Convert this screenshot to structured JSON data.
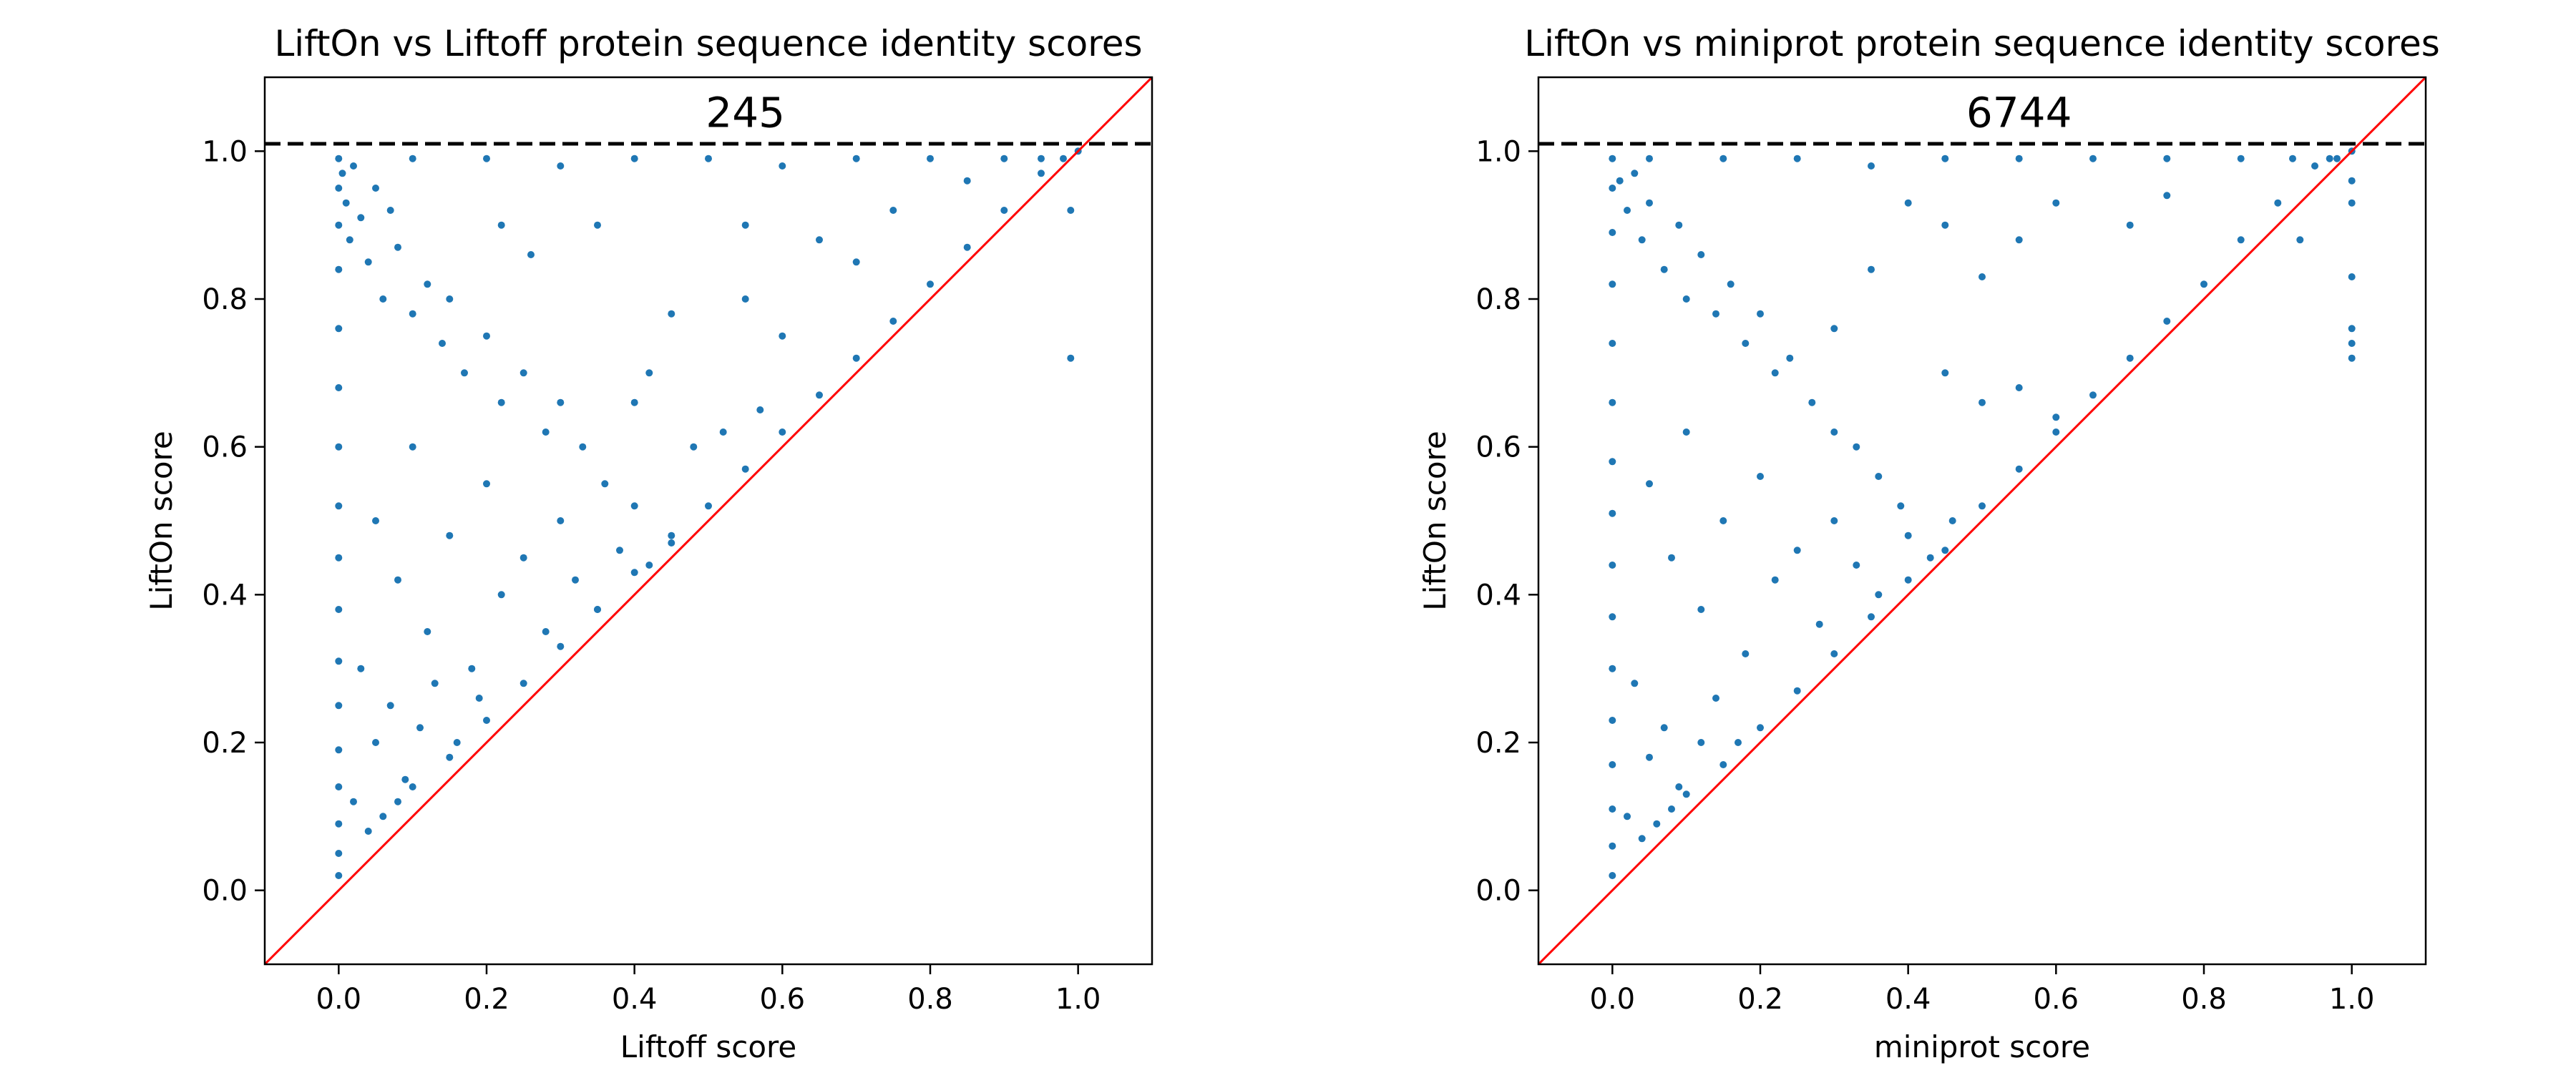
{
  "chart_data": [
    {
      "type": "scatter",
      "title": "LiftOn vs Liftoff protein sequence identity scores",
      "xlabel": "Liftoff score",
      "ylabel": "LiftOn score",
      "xlim": [
        -0.1,
        1.1
      ],
      "ylim": [
        -0.1,
        1.1
      ],
      "xticks": [
        "0.0",
        "0.2",
        "0.4",
        "0.6",
        "0.8",
        "1.0"
      ],
      "yticks": [
        "0.0",
        "0.2",
        "0.4",
        "0.6",
        "0.8",
        "1.0"
      ],
      "grid": false,
      "marker_color": "#1f77b4",
      "reference_line": {
        "type": "diagonal",
        "slope": 1,
        "intercept": 0,
        "color": "#ff0000"
      },
      "threshold_line": {
        "y": 1.01,
        "style": "dashed",
        "color": "#000000"
      },
      "annotation": {
        "text": "245",
        "x": 0.55,
        "y": 1.05
      },
      "series": [
        {
          "points": [
            [
              0.0,
              0.02
            ],
            [
              0.0,
              0.05
            ],
            [
              0.0,
              0.09
            ],
            [
              0.0,
              0.14
            ],
            [
              0.0,
              0.19
            ],
            [
              0.0,
              0.25
            ],
            [
              0.0,
              0.31
            ],
            [
              0.0,
              0.38
            ],
            [
              0.0,
              0.45
            ],
            [
              0.0,
              0.52
            ],
            [
              0.0,
              0.6
            ],
            [
              0.0,
              0.68
            ],
            [
              0.0,
              0.76
            ],
            [
              0.0,
              0.84
            ],
            [
              0.0,
              0.9
            ],
            [
              0.0,
              0.95
            ],
            [
              0.0,
              0.99
            ],
            [
              0.005,
              0.97
            ],
            [
              0.01,
              0.93
            ],
            [
              0.015,
              0.88
            ],
            [
              0.02,
              0.98
            ],
            [
              0.03,
              0.91
            ],
            [
              0.04,
              0.85
            ],
            [
              0.05,
              0.95
            ],
            [
              0.06,
              0.8
            ],
            [
              0.07,
              0.92
            ],
            [
              0.08,
              0.87
            ],
            [
              0.1,
              0.78
            ],
            [
              0.12,
              0.82
            ],
            [
              0.14,
              0.74
            ],
            [
              0.15,
              0.8
            ],
            [
              0.17,
              0.7
            ],
            [
              0.2,
              0.75
            ],
            [
              0.22,
              0.66
            ],
            [
              0.25,
              0.7
            ],
            [
              0.28,
              0.62
            ],
            [
              0.3,
              0.66
            ],
            [
              0.33,
              0.6
            ],
            [
              0.36,
              0.55
            ],
            [
              0.05,
              0.5
            ],
            [
              0.08,
              0.42
            ],
            [
              0.1,
              0.6
            ],
            [
              0.12,
              0.35
            ],
            [
              0.15,
              0.48
            ],
            [
              0.18,
              0.3
            ],
            [
              0.2,
              0.55
            ],
            [
              0.22,
              0.4
            ],
            [
              0.25,
              0.45
            ],
            [
              0.28,
              0.35
            ],
            [
              0.3,
              0.5
            ],
            [
              0.32,
              0.42
            ],
            [
              0.35,
              0.38
            ],
            [
              0.38,
              0.46
            ],
            [
              0.4,
              0.52
            ],
            [
              0.42,
              0.44
            ],
            [
              0.45,
              0.48
            ],
            [
              0.03,
              0.3
            ],
            [
              0.05,
              0.2
            ],
            [
              0.07,
              0.25
            ],
            [
              0.09,
              0.15
            ],
            [
              0.11,
              0.22
            ],
            [
              0.13,
              0.28
            ],
            [
              0.16,
              0.2
            ],
            [
              0.19,
              0.26
            ],
            [
              0.02,
              0.12
            ],
            [
              0.04,
              0.08
            ],
            [
              0.06,
              0.1
            ],
            [
              0.08,
              0.12
            ],
            [
              0.1,
              0.14
            ],
            [
              0.15,
              0.18
            ],
            [
              0.2,
              0.23
            ],
            [
              0.25,
              0.28
            ],
            [
              0.3,
              0.33
            ],
            [
              0.35,
              0.38
            ],
            [
              0.4,
              0.43
            ],
            [
              0.45,
              0.47
            ],
            [
              0.5,
              0.52
            ],
            [
              0.55,
              0.57
            ],
            [
              0.6,
              0.62
            ],
            [
              0.65,
              0.67
            ],
            [
              0.7,
              0.72
            ],
            [
              0.75,
              0.77
            ],
            [
              0.8,
              0.82
            ],
            [
              0.85,
              0.87
            ],
            [
              0.9,
              0.92
            ],
            [
              0.95,
              0.97
            ],
            [
              0.98,
              0.99
            ],
            [
              1.0,
              1.0
            ],
            [
              0.1,
              0.99
            ],
            [
              0.2,
              0.99
            ],
            [
              0.3,
              0.98
            ],
            [
              0.4,
              0.99
            ],
            [
              0.5,
              0.99
            ],
            [
              0.6,
              0.98
            ],
            [
              0.7,
              0.99
            ],
            [
              0.8,
              0.99
            ],
            [
              0.9,
              0.99
            ],
            [
              0.95,
              0.99
            ],
            [
              0.35,
              0.9
            ],
            [
              0.45,
              0.78
            ],
            [
              0.55,
              0.8
            ],
            [
              0.55,
              0.9
            ],
            [
              0.65,
              0.88
            ],
            [
              0.7,
              0.85
            ],
            [
              0.75,
              0.92
            ],
            [
              0.85,
              0.96
            ],
            [
              0.6,
              0.75
            ],
            [
              0.4,
              0.66
            ],
            [
              0.42,
              0.7
            ],
            [
              0.48,
              0.6
            ],
            [
              0.52,
              0.62
            ],
            [
              0.57,
              0.65
            ],
            [
              0.99,
              0.92
            ],
            [
              0.99,
              0.72
            ],
            [
              0.26,
              0.86
            ],
            [
              0.22,
              0.9
            ]
          ]
        }
      ]
    },
    {
      "type": "scatter",
      "title": "LiftOn vs miniprot protein sequence identity scores",
      "xlabel": "miniprot score",
      "ylabel": "LiftOn score",
      "xlim": [
        -0.1,
        1.1
      ],
      "ylim": [
        -0.1,
        1.1
      ],
      "xticks": [
        "0.0",
        "0.2",
        "0.4",
        "0.6",
        "0.8",
        "1.0"
      ],
      "yticks": [
        "0.0",
        "0.2",
        "0.4",
        "0.6",
        "0.8",
        "1.0"
      ],
      "grid": false,
      "marker_color": "#1f77b4",
      "reference_line": {
        "type": "diagonal",
        "slope": 1,
        "intercept": 0,
        "color": "#ff0000"
      },
      "threshold_line": {
        "y": 1.01,
        "style": "dashed",
        "color": "#000000"
      },
      "annotation": {
        "text": "6744",
        "x": 0.55,
        "y": 1.05
      },
      "series": [
        {
          "points": [
            [
              0.0,
              0.02
            ],
            [
              0.0,
              0.06
            ],
            [
              0.0,
              0.11
            ],
            [
              0.0,
              0.17
            ],
            [
              0.0,
              0.23
            ],
            [
              0.0,
              0.3
            ],
            [
              0.0,
              0.37
            ],
            [
              0.0,
              0.44
            ],
            [
              0.0,
              0.51
            ],
            [
              0.0,
              0.58
            ],
            [
              0.0,
              0.66
            ],
            [
              0.0,
              0.74
            ],
            [
              0.0,
              0.82
            ],
            [
              0.0,
              0.89
            ],
            [
              0.0,
              0.95
            ],
            [
              0.0,
              0.99
            ],
            [
              0.01,
              0.96
            ],
            [
              0.02,
              0.92
            ],
            [
              0.03,
              0.97
            ],
            [
              0.04,
              0.88
            ],
            [
              0.05,
              0.93
            ],
            [
              0.07,
              0.84
            ],
            [
              0.09,
              0.9
            ],
            [
              0.1,
              0.8
            ],
            [
              0.12,
              0.86
            ],
            [
              0.14,
              0.78
            ],
            [
              0.16,
              0.82
            ],
            [
              0.18,
              0.74
            ],
            [
              0.2,
              0.78
            ],
            [
              0.22,
              0.7
            ],
            [
              0.24,
              0.72
            ],
            [
              0.27,
              0.66
            ],
            [
              0.3,
              0.62
            ],
            [
              0.33,
              0.6
            ],
            [
              0.36,
              0.56
            ],
            [
              0.39,
              0.52
            ],
            [
              0.05,
              0.55
            ],
            [
              0.08,
              0.45
            ],
            [
              0.1,
              0.62
            ],
            [
              0.12,
              0.38
            ],
            [
              0.15,
              0.5
            ],
            [
              0.18,
              0.32
            ],
            [
              0.2,
              0.56
            ],
            [
              0.22,
              0.42
            ],
            [
              0.25,
              0.46
            ],
            [
              0.28,
              0.36
            ],
            [
              0.3,
              0.5
            ],
            [
              0.33,
              0.44
            ],
            [
              0.36,
              0.4
            ],
            [
              0.4,
              0.48
            ],
            [
              0.43,
              0.45
            ],
            [
              0.46,
              0.5
            ],
            [
              0.03,
              0.28
            ],
            [
              0.05,
              0.18
            ],
            [
              0.07,
              0.22
            ],
            [
              0.09,
              0.14
            ],
            [
              0.12,
              0.2
            ],
            [
              0.14,
              0.26
            ],
            [
              0.17,
              0.2
            ],
            [
              0.02,
              0.1
            ],
            [
              0.04,
              0.07
            ],
            [
              0.06,
              0.09
            ],
            [
              0.08,
              0.11
            ],
            [
              0.1,
              0.13
            ],
            [
              0.15,
              0.17
            ],
            [
              0.2,
              0.22
            ],
            [
              0.25,
              0.27
            ],
            [
              0.3,
              0.32
            ],
            [
              0.35,
              0.37
            ],
            [
              0.4,
              0.42
            ],
            [
              0.45,
              0.46
            ],
            [
              0.5,
              0.52
            ],
            [
              0.55,
              0.57
            ],
            [
              0.6,
              0.62
            ],
            [
              0.65,
              0.67
            ],
            [
              0.7,
              0.72
            ],
            [
              0.75,
              0.77
            ],
            [
              0.8,
              0.82
            ],
            [
              0.85,
              0.88
            ],
            [
              0.9,
              0.93
            ],
            [
              0.95,
              0.98
            ],
            [
              0.98,
              0.99
            ],
            [
              1.0,
              1.0
            ],
            [
              0.05,
              0.99
            ],
            [
              0.15,
              0.99
            ],
            [
              0.25,
              0.99
            ],
            [
              0.35,
              0.98
            ],
            [
              0.45,
              0.99
            ],
            [
              0.55,
              0.99
            ],
            [
              0.65,
              0.99
            ],
            [
              0.75,
              0.99
            ],
            [
              0.85,
              0.99
            ],
            [
              0.92,
              0.99
            ],
            [
              0.97,
              0.99
            ],
            [
              0.4,
              0.93
            ],
            [
              0.45,
              0.9
            ],
            [
              0.5,
              0.83
            ],
            [
              0.55,
              0.88
            ],
            [
              0.6,
              0.93
            ],
            [
              0.7,
              0.9
            ],
            [
              0.75,
              0.94
            ],
            [
              0.45,
              0.7
            ],
            [
              0.5,
              0.66
            ],
            [
              0.55,
              0.68
            ],
            [
              0.6,
              0.64
            ],
            [
              1.0,
              0.96
            ],
            [
              1.0,
              0.93
            ],
            [
              1.0,
              0.83
            ],
            [
              1.0,
              0.76
            ],
            [
              1.0,
              0.74
            ],
            [
              1.0,
              0.72
            ],
            [
              0.93,
              0.88
            ],
            [
              0.3,
              0.76
            ],
            [
              0.35,
              0.84
            ]
          ]
        }
      ]
    }
  ]
}
